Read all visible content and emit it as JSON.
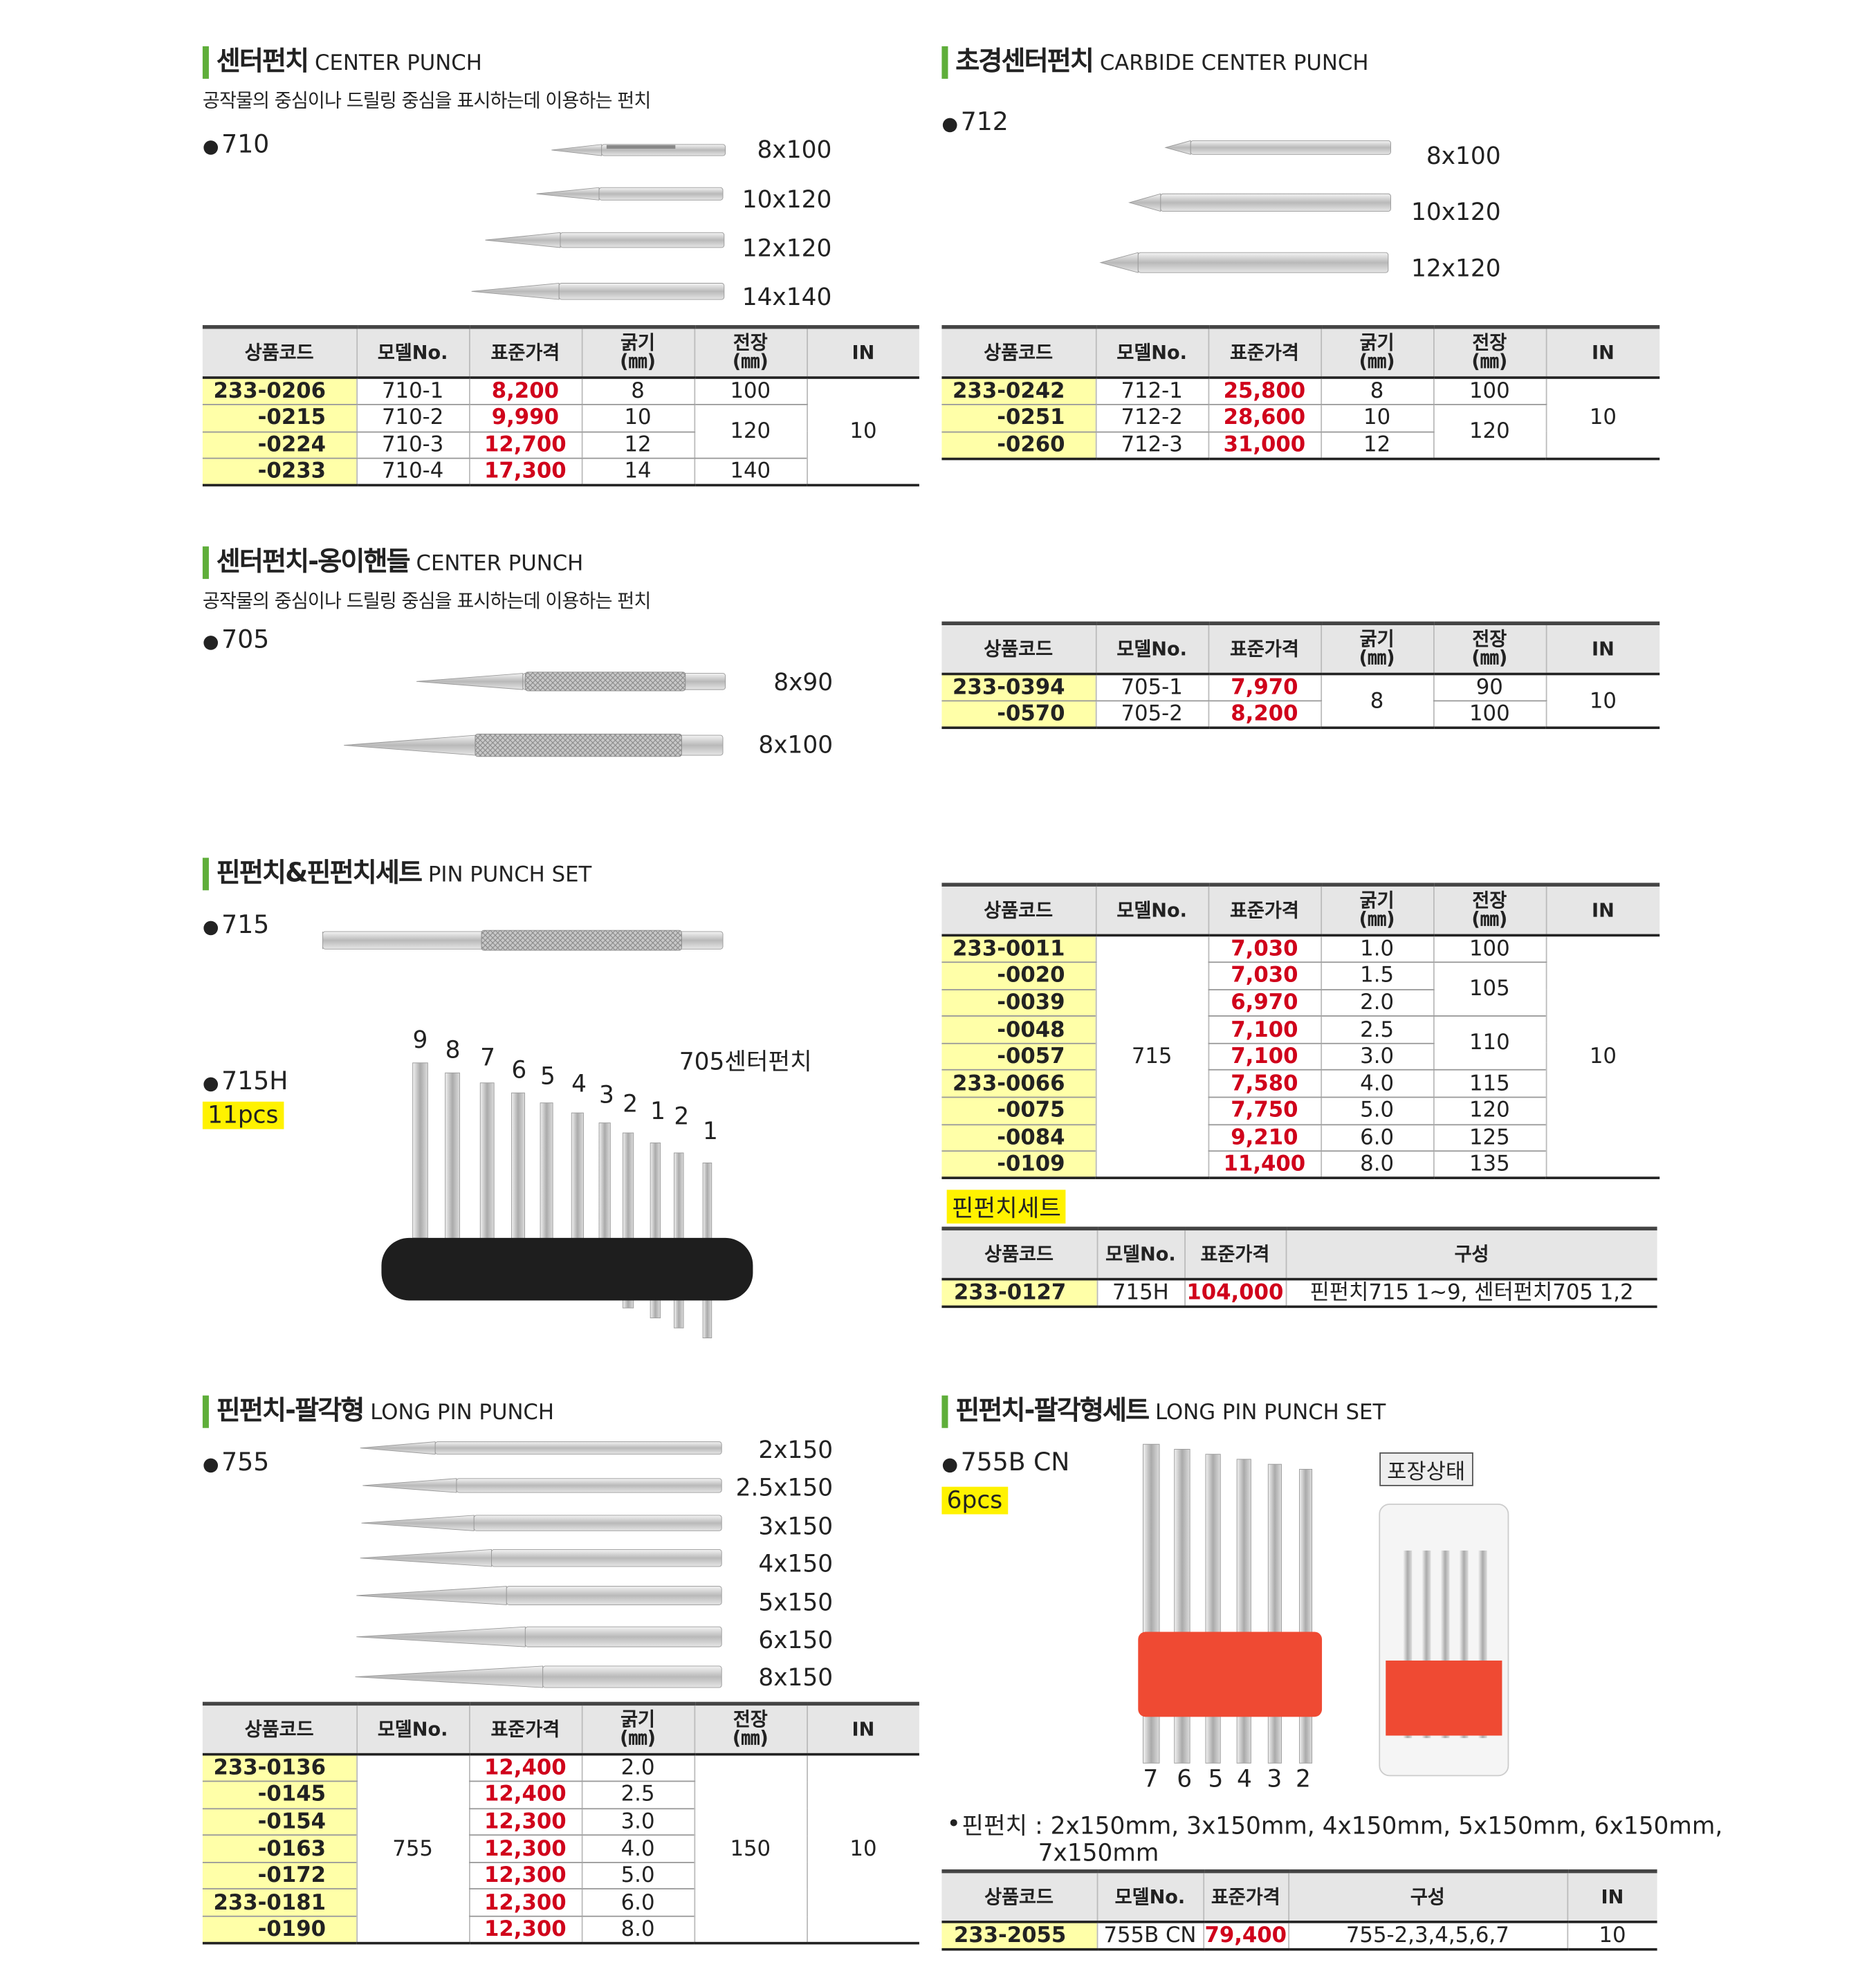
{
  "sections": [
    {
      "title_ko": "센터펀치",
      "title_en": "CENTER PUNCH",
      "description": "공작물의 중심이나 드릴링 중심을 표시하는데 이용하는 펀치",
      "models": [
        "710"
      ],
      "sizes": [
        "8x100",
        "10x120",
        "12x120",
        "14x140"
      ]
    },
    {
      "title_ko": "초경센터펀치",
      "title_en": "CARBIDE CENTER PUNCH",
      "models": [
        "712"
      ],
      "sizes": [
        "8x100",
        "10x120",
        "12x120"
      ]
    },
    {
      "title_ko": "센터펀치-옹이핸들",
      "title_en": "CENTER PUNCH",
      "description": "공작물의 중심이나 드릴링 중심을 표시하는데 이용하는 펀치",
      "models": [
        "705"
      ],
      "sizes": [
        "8x90",
        "8x100"
      ]
    },
    {
      "title_ko": "핀펀치&핀펀치세트",
      "title_en": "PIN PUNCH SET",
      "models": [
        "715",
        "715H"
      ],
      "pcs": "11pcs",
      "set_labels": [
        "9",
        "8",
        "7",
        "6",
        "5",
        "4",
        "3",
        "2",
        "1",
        "2",
        "1"
      ],
      "set_note": "705센터펀치",
      "set_label": "핀펀치세트"
    },
    {
      "title_ko": "핀펀치-팔각형",
      "title_en": "LONG PIN PUNCH",
      "models": [
        "755"
      ],
      "sizes": [
        "2x150",
        "2.5x150",
        "3x150",
        "4x150",
        "5x150",
        "6x150",
        "8x150"
      ]
    },
    {
      "title_ko": "핀펀치-팔각형세트",
      "title_en": "LONG PIN PUNCH SET",
      "models": [
        "755B CN"
      ],
      "pcs": "6pcs",
      "package_label": "포장상태",
      "piece_numbers": [
        "7",
        "6",
        "5",
        "4",
        "3",
        "2"
      ],
      "note": [
        "핀펀치 : 2x150mm, 3x150mm, 4x150mm, 5x150mm, 6x150mm,",
        "7x150mm"
      ]
    }
  ],
  "tables": [
    {
      "headers": [
        "상품코드",
        "모델No.",
        "표준가격",
        "굵기\n(㎜)",
        "전장\n(㎜)",
        "IN"
      ],
      "rows": [
        [
          "233-0206",
          "710-1",
          "8,200",
          "8",
          "100",
          "10"
        ],
        [
          "-0215",
          "710-2",
          "9,990",
          "10",
          "120"
        ],
        [
          "-0224",
          "710-3",
          "12,700",
          "12"
        ],
        [
          "-0233",
          "710-4",
          "17,300",
          "14",
          "140"
        ]
      ]
    },
    {
      "headers": [
        "상품코드",
        "모델No.",
        "표준가격",
        "굵기\n(㎜)",
        "전장\n(㎜)",
        "IN"
      ],
      "rows": [
        [
          "233-0242",
          "712-1",
          "25,800",
          "8",
          "100",
          "10"
        ],
        [
          "-0251",
          "712-2",
          "28,600",
          "10",
          "120"
        ],
        [
          "-0260",
          "712-3",
          "31,000",
          "12"
        ]
      ]
    },
    {
      "headers": [
        "상품코드",
        "모델No.",
        "표준가격",
        "굵기\n(㎜)",
        "전장\n(㎜)",
        "IN"
      ],
      "rows": [
        [
          "233-0394",
          "705-1",
          "7,970",
          "8",
          "90",
          "10"
        ],
        [
          "-0570",
          "705-2",
          "8,200",
          "100"
        ]
      ]
    },
    {
      "headers": [
        "상품코드",
        "모델No.",
        "표준가격",
        "굵기\n(㎜)",
        "전장\n(㎜)",
        "IN"
      ],
      "rows": [
        [
          "233-0011",
          "715",
          "7,030",
          "1.0",
          "100",
          "10"
        ],
        [
          "-0020",
          "7,030",
          "1.5",
          "105"
        ],
        [
          "-0039",
          "6,970",
          "2.0"
        ],
        [
          "-0048",
          "7,100",
          "2.5",
          "110"
        ],
        [
          "-0057",
          "7,100",
          "3.0"
        ],
        [
          "233-0066",
          "7,580",
          "4.0",
          "115"
        ],
        [
          "-0075",
          "7,750",
          "5.0",
          "120"
        ],
        [
          "-0084",
          "9,210",
          "6.0",
          "125"
        ],
        [
          "-0109",
          "11,400",
          "8.0",
          "135"
        ]
      ]
    },
    {
      "headers": [
        "상품코드",
        "모델No.",
        "표준가격",
        "구성"
      ],
      "rows": [
        [
          "233-0127",
          "715H",
          "104,000",
          "핀펀치715 1~9, 센터펀치705 1,2"
        ]
      ]
    },
    {
      "headers": [
        "상품코드",
        "모델No.",
        "표준가격",
        "굵기\n(㎜)",
        "전장\n(㎜)",
        "IN"
      ],
      "rows": [
        [
          "233-0136",
          "755",
          "12,400",
          "2.0",
          "150",
          "10"
        ],
        [
          "-0145",
          "12,400",
          "2.5"
        ],
        [
          "-0154",
          "12,300",
          "3.0"
        ],
        [
          "-0163",
          "12,300",
          "4.0"
        ],
        [
          "-0172",
          "12,300",
          "5.0"
        ],
        [
          "233-0181",
          "12,300",
          "6.0"
        ],
        [
          "-0190",
          "12,300",
          "8.0"
        ]
      ]
    },
    {
      "headers": [
        "상품코드",
        "모델No.",
        "표준가격",
        "구성",
        "IN"
      ],
      "rows": [
        [
          "233-2055",
          "755B CN",
          "79,400",
          "755-2,3,4,5,6,7",
          "10"
        ]
      ]
    }
  ]
}
